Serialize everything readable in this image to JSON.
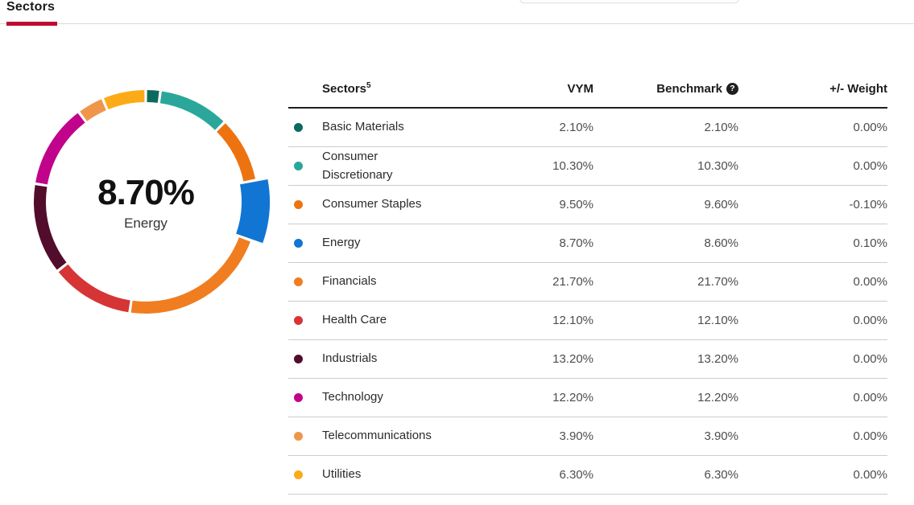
{
  "tabs": [
    {
      "label": "Sectors",
      "active": true
    }
  ],
  "colors": {
    "accent": "#be0b32",
    "header_rule": "#1f1f1f",
    "row_rule": "#cccccc"
  },
  "chart_data": {
    "type": "donut",
    "center": {
      "value": "8.70%",
      "label": "Energy"
    },
    "highlighted_segment": "Energy",
    "unit": "percent",
    "segments": [
      {
        "label": "Basic Materials",
        "value": 2.1,
        "color": "#0b6a5e"
      },
      {
        "label": "Consumer Discretionary",
        "value": 10.3,
        "color": "#2aa79a"
      },
      {
        "label": "Consumer Staples",
        "value": 9.5,
        "color": "#ed7311"
      },
      {
        "label": "Energy",
        "value": 8.7,
        "color": "#1175d4",
        "highlight": true
      },
      {
        "label": "Financials",
        "value": 21.7,
        "color": "#f07d1f"
      },
      {
        "label": "Health Care",
        "value": 12.1,
        "color": "#d63535"
      },
      {
        "label": "Industrials",
        "value": 13.2,
        "color": "#520d2c"
      },
      {
        "label": "Technology",
        "value": 12.2,
        "color": "#c0038a"
      },
      {
        "label": "Telecommunications",
        "value": 3.9,
        "color": "#ef964a"
      },
      {
        "label": "Utilities",
        "value": 6.3,
        "color": "#fbab18"
      }
    ]
  },
  "table": {
    "headers": {
      "sectors": "Sectors",
      "sectors_sup": "5",
      "vym": "VYM",
      "benchmark": "Benchmark",
      "benchmark_help_icon": "?",
      "weight": "+/- Weight"
    },
    "rows": [
      {
        "sector": "Basic Materials",
        "vym": "2.10%",
        "benchmark": "2.10%",
        "weight": "0.00%"
      },
      {
        "sector": "Consumer Discretionary",
        "vym": "10.30%",
        "benchmark": "10.30%",
        "weight": "0.00%"
      },
      {
        "sector": "Consumer Staples",
        "vym": "9.50%",
        "benchmark": "9.60%",
        "weight": "-0.10%"
      },
      {
        "sector": "Energy",
        "vym": "8.70%",
        "benchmark": "8.60%",
        "weight": "0.10%"
      },
      {
        "sector": "Financials",
        "vym": "21.70%",
        "benchmark": "21.70%",
        "weight": "0.00%"
      },
      {
        "sector": "Health Care",
        "vym": "12.10%",
        "benchmark": "12.10%",
        "weight": "0.00%"
      },
      {
        "sector": "Industrials",
        "vym": "13.20%",
        "benchmark": "13.20%",
        "weight": "0.00%"
      },
      {
        "sector": "Technology",
        "vym": "12.20%",
        "benchmark": "12.20%",
        "weight": "0.00%"
      },
      {
        "sector": "Telecommunications",
        "vym": "3.90%",
        "benchmark": "3.90%",
        "weight": "0.00%"
      },
      {
        "sector": "Utilities",
        "vym": "6.30%",
        "benchmark": "6.30%",
        "weight": "0.00%"
      }
    ]
  }
}
